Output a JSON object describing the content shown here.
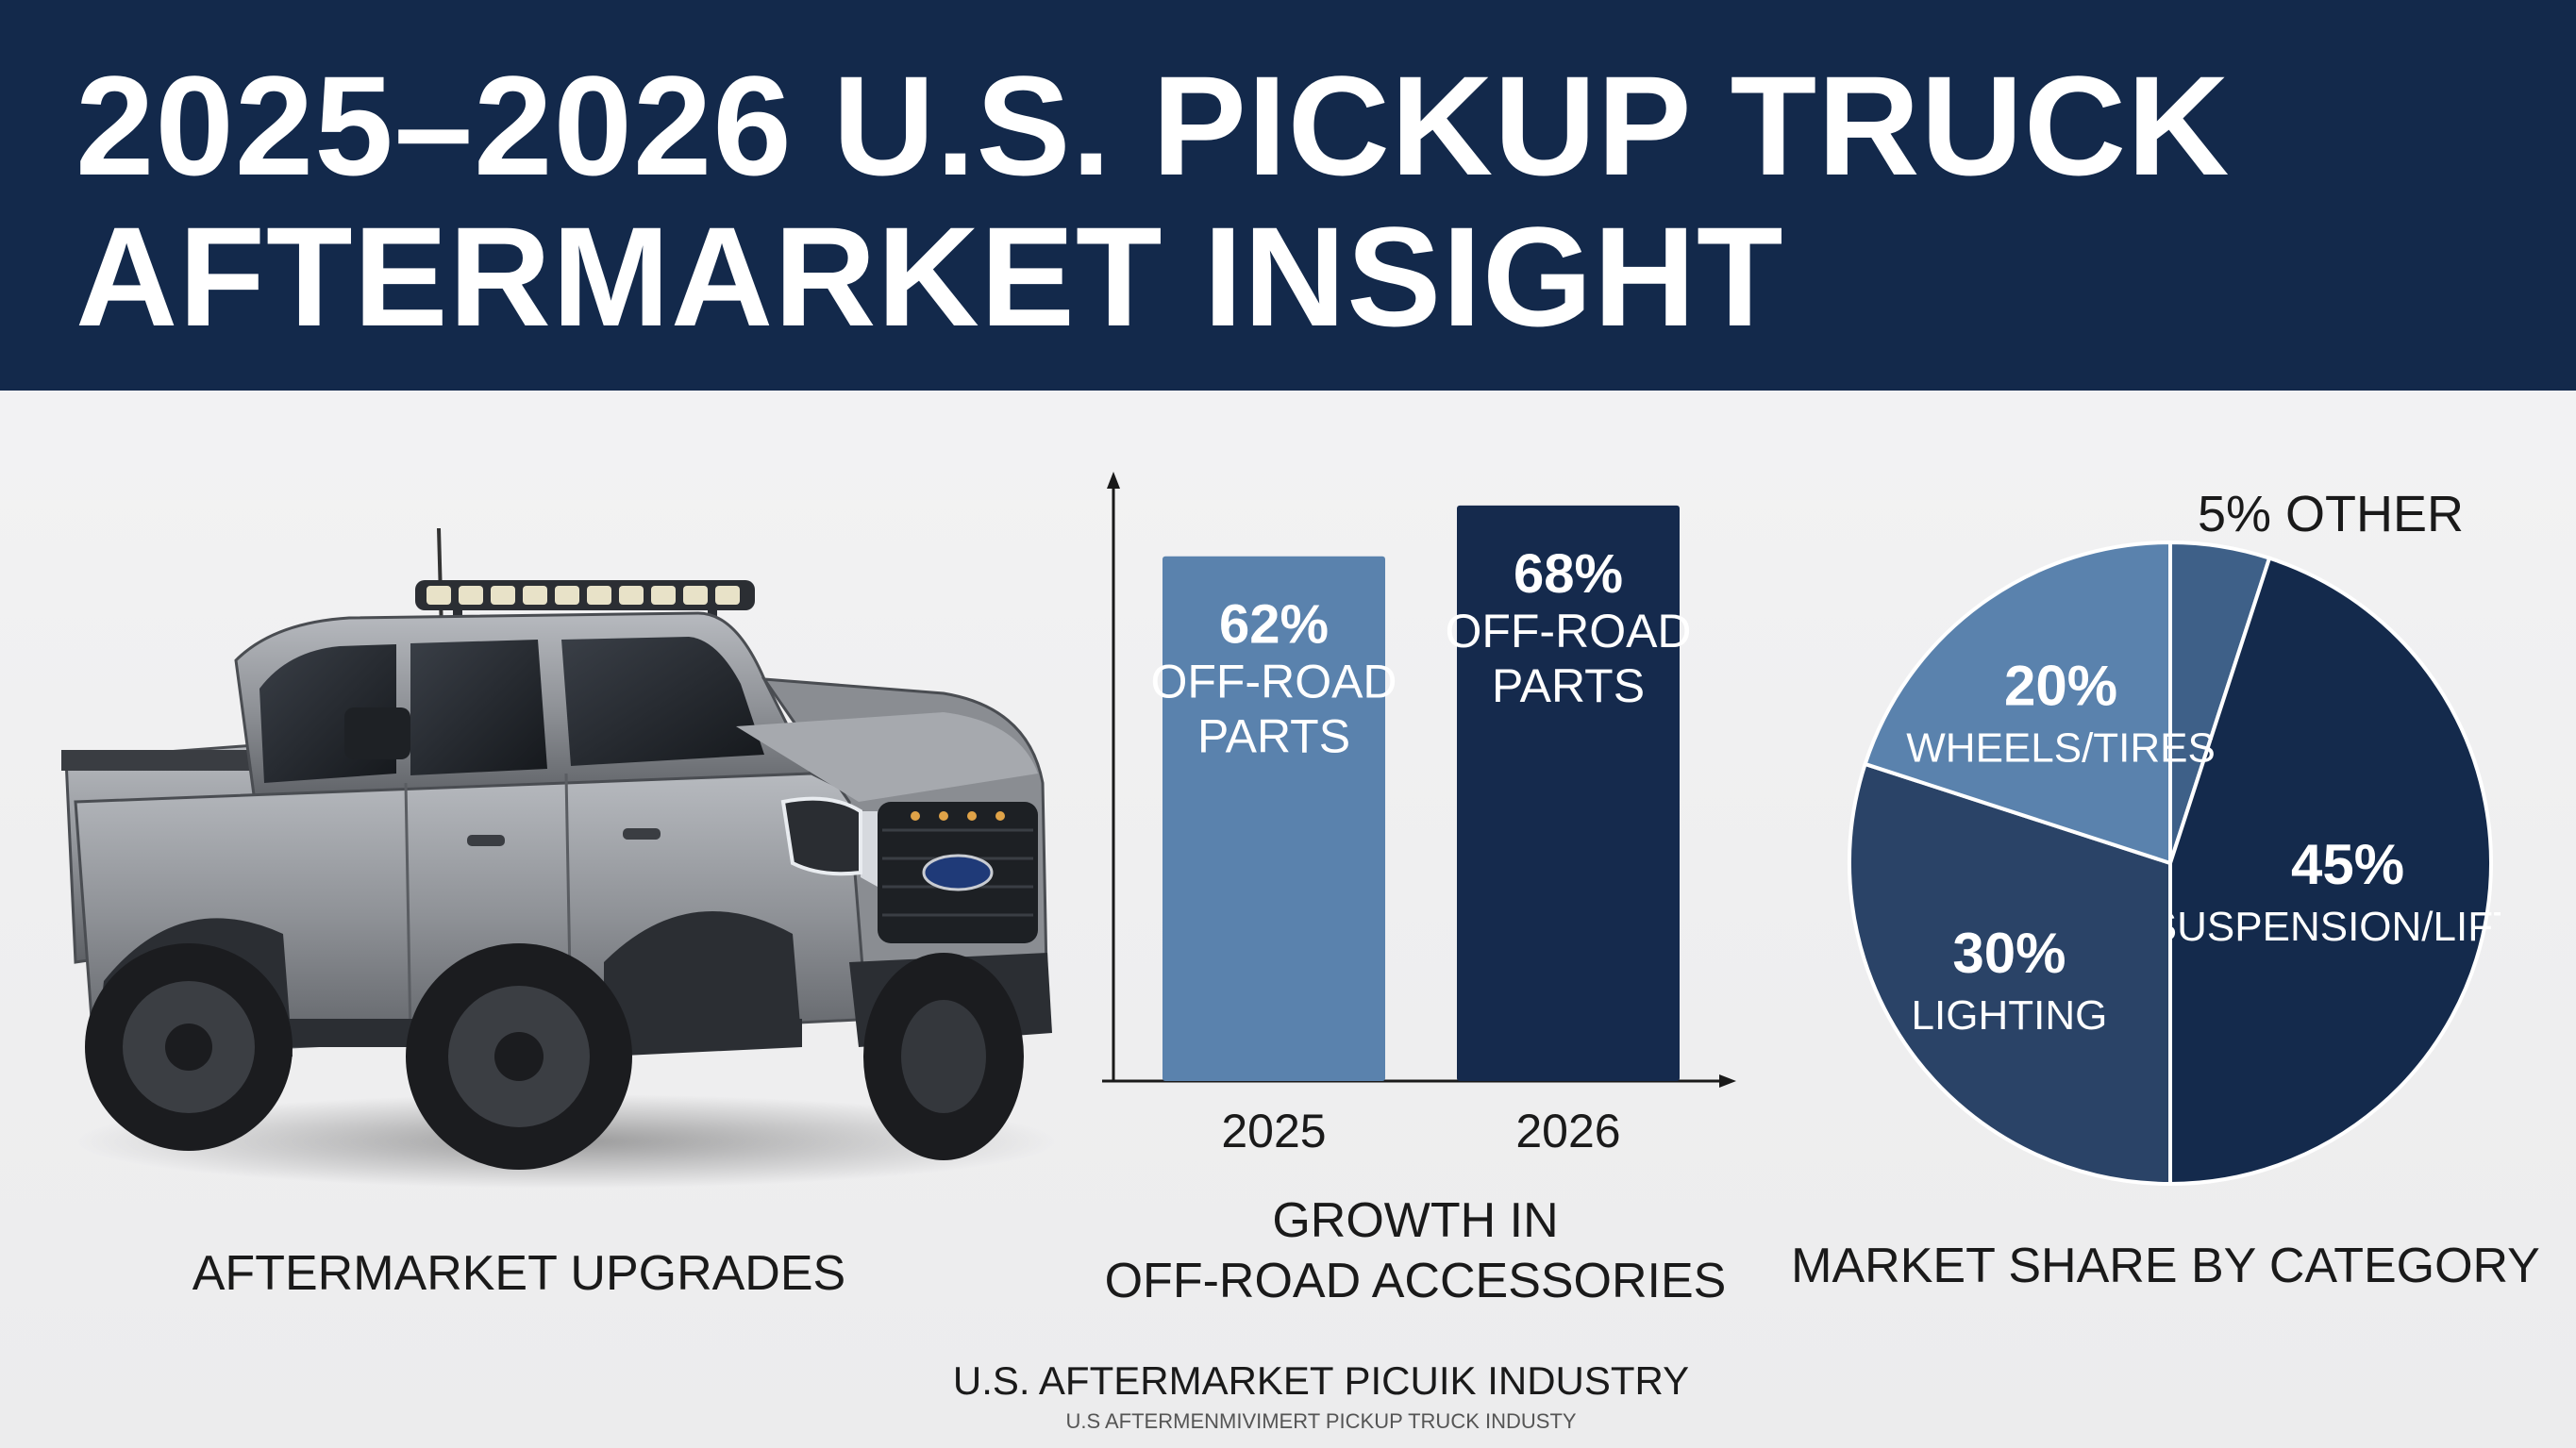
{
  "banner": {
    "title_line1": "2025–2026 U.S. PICKUP TRUCK",
    "title_line2": "AFTERMARKET INSIGHT",
    "background": "#13294b"
  },
  "truck": {
    "label": "AFTERMARKET UPGRADES",
    "badge_icon": "ford-oval-icon",
    "body_color": "#8f9297"
  },
  "chart_data": [
    {
      "type": "bar",
      "categories": [
        "2025",
        "2026"
      ],
      "values": [
        62,
        68
      ],
      "value_labels": [
        "62%",
        "68%"
      ],
      "bar_text_lines": [
        "OFF-ROAD",
        "PARTS"
      ],
      "colors": [
        "#5a82ad",
        "#152a4d"
      ],
      "title_lines": [
        "GROWTH IN",
        "OFF-ROAD ACCESSORIES"
      ],
      "xlabel": "",
      "ylabel": "",
      "ylim": [
        0,
        72
      ],
      "grid": false
    },
    {
      "type": "pie",
      "slices": [
        {
          "name": "OTHER",
          "value": 5,
          "value_label": "5%",
          "color": "#3e6088"
        },
        {
          "name": "SUSPENSION/LIFTS",
          "value": 45,
          "value_label": "45%",
          "color": "#142a4c"
        },
        {
          "name": "LIGHTING",
          "value": 30,
          "value_label": "30%",
          "color": "#2a4367"
        },
        {
          "name": "WHEELS/TIRES",
          "value": 20,
          "value_label": "20%",
          "color": "#5a82ad"
        }
      ],
      "outside_label": "5% OTHER",
      "title": "MARKET SHARE BY CATEGORY"
    }
  ],
  "footer": {
    "main": "U.S. AFTERMARKET PICUIK INDUSTRY",
    "sub": "U.S AFTERMENMIVIMERT PICKUP TRUCK INDUSTY"
  }
}
